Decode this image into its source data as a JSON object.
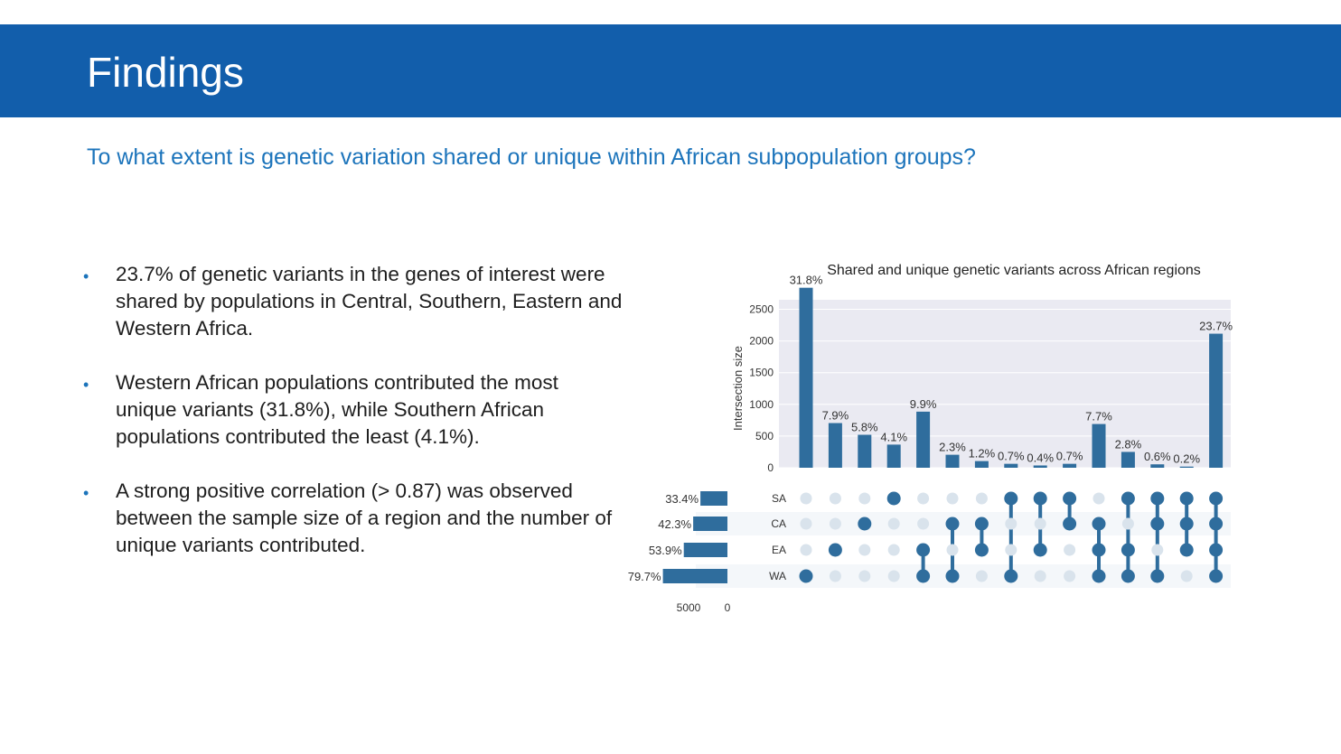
{
  "slide": {
    "title": "Findings",
    "question": "To what extent is genetic variation shared or unique within African subpopulation groups?",
    "bullets": [
      "23.7% of genetic variants in the genes of interest were shared by populations in Central, Southern, Eastern and Western Africa.",
      "Western African populations contributed the most unique variants (31.8%), while Southern African populations contributed the least (4.1%).",
      "A strong positive correlation (> 0.87) was observed between the sample size of a region and the number of unique variants contributed."
    ]
  },
  "colors": {
    "header": "#125eab",
    "accent_text": "#1c74bb",
    "bar": "#2f6d9d",
    "dot_active": "#2f6d9d",
    "dot_inactive": "#d9e3ec",
    "plot_bg": "#eaeaf2"
  },
  "chart_data": {
    "type": "upset",
    "title": "Shared and unique genetic variants across African regions",
    "ylabel": "Intersection size",
    "ylim": [
      0,
      2650
    ],
    "yticks": [
      0,
      500,
      1000,
      1500,
      2000,
      2500
    ],
    "sets": [
      "SA",
      "CA",
      "EA",
      "WA"
    ],
    "set_size_labels": [
      "33.4%",
      "42.3%",
      "53.9%",
      "79.7%"
    ],
    "set_size_values": [
      2990,
      3790,
      4830,
      7140
    ],
    "set_axis_ticks": [
      "5000",
      "0"
    ],
    "set_axis_max": 7500,
    "intersections": [
      {
        "members": [
          "WA"
        ],
        "value": 2840,
        "label": "31.8%"
      },
      {
        "members": [
          "EA"
        ],
        "value": 705,
        "label": "7.9%"
      },
      {
        "members": [
          "CA"
        ],
        "value": 520,
        "label": "5.8%"
      },
      {
        "members": [
          "SA"
        ],
        "value": 365,
        "label": "4.1%"
      },
      {
        "members": [
          "EA",
          "WA"
        ],
        "value": 885,
        "label": "9.9%"
      },
      {
        "members": [
          "CA",
          "WA"
        ],
        "value": 205,
        "label": "2.3%"
      },
      {
        "members": [
          "CA",
          "EA"
        ],
        "value": 105,
        "label": "1.2%"
      },
      {
        "members": [
          "SA",
          "WA"
        ],
        "value": 62,
        "label": "0.7%"
      },
      {
        "members": [
          "SA",
          "EA"
        ],
        "value": 36,
        "label": "0.4%"
      },
      {
        "members": [
          "SA",
          "CA"
        ],
        "value": 62,
        "label": "0.7%"
      },
      {
        "members": [
          "CA",
          "EA",
          "WA"
        ],
        "value": 690,
        "label": "7.7%"
      },
      {
        "members": [
          "SA",
          "EA",
          "WA"
        ],
        "value": 250,
        "label": "2.8%"
      },
      {
        "members": [
          "SA",
          "CA",
          "WA"
        ],
        "value": 54,
        "label": "0.6%"
      },
      {
        "members": [
          "SA",
          "CA",
          "EA"
        ],
        "value": 18,
        "label": "0.2%"
      },
      {
        "members": [
          "SA",
          "CA",
          "EA",
          "WA"
        ],
        "value": 2115,
        "label": "23.7%"
      }
    ]
  }
}
